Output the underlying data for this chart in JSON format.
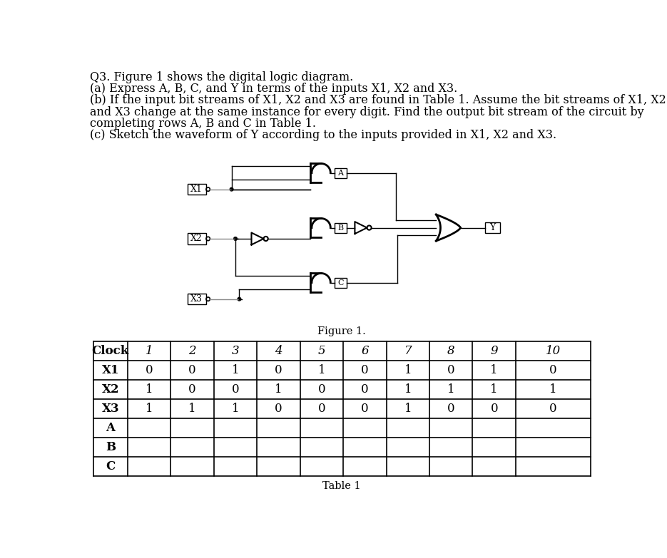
{
  "title_lines": [
    "Q3. Figure 1 shows the digital logic diagram.",
    "(a) Express A, B, C, and Y in terms of the inputs X1, X2 and X3.",
    "(b) If the input bit streams of X1, X2 and X3 are found in Table 1. Assume the bit streams of X1, X2",
    "and X3 change at the same instance for every digit. Find the output bit stream of the circuit by",
    "completing rows A, B and C in Table 1.",
    "(c) Sketch the waveform of Y according to the inputs provided in X1, X2 and X3."
  ],
  "figure_caption": "Figure 1.",
  "table_caption": "Table 1",
  "table_headers": [
    "Clock",
    "1",
    "2",
    "3",
    "4",
    "5",
    "6",
    "7",
    "8",
    "9",
    "10"
  ],
  "table_rows": [
    [
      "X1",
      "0",
      "0",
      "1",
      "0",
      "1",
      "0",
      "1",
      "0",
      "1",
      "0"
    ],
    [
      "X2",
      "1",
      "0",
      "0",
      "1",
      "0",
      "0",
      "1",
      "1",
      "1",
      "1"
    ],
    [
      "X3",
      "1",
      "1",
      "1",
      "0",
      "0",
      "0",
      "1",
      "0",
      "0",
      "0"
    ],
    [
      "A",
      "",
      "",
      "",
      "",
      "",
      "",
      "",
      "",
      "",
      ""
    ],
    [
      "B",
      "",
      "",
      "",
      "",
      "",
      "",
      "",
      "",
      "",
      ""
    ],
    [
      "C",
      "",
      "",
      "",
      "",
      "",
      "",
      "",
      "",
      "",
      ""
    ]
  ],
  "background_color": "#ffffff",
  "text_color": "#000000",
  "font_size_text": 11.5,
  "font_size_table": 12
}
